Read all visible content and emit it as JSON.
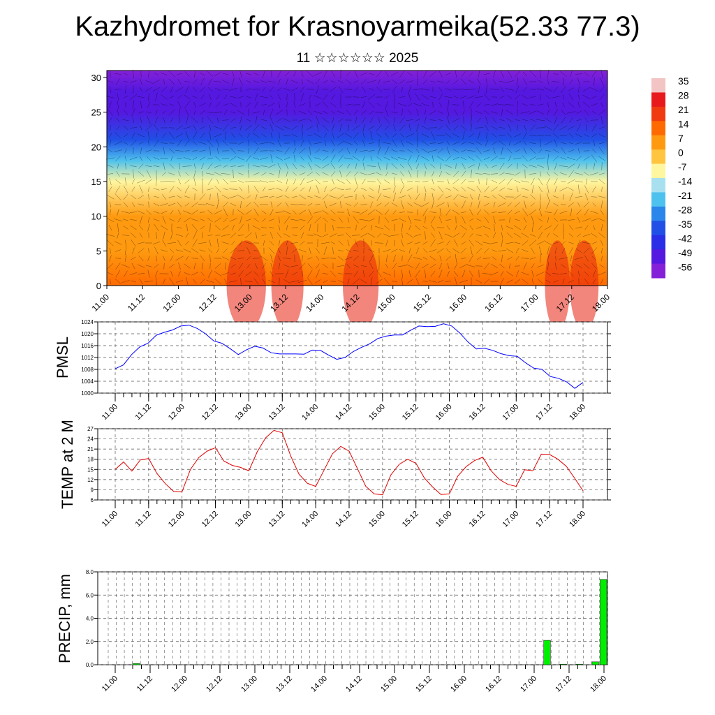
{
  "title": "Kazhydromet for Krasnoyarmeika(52.33 77.3)",
  "subtitle": "11 ☆☆☆☆☆☆ 2025",
  "time_labels": [
    "11.00",
    "11.12",
    "12.00",
    "12.12",
    "13.00",
    "13.12",
    "14.00",
    "14.12",
    "15.00",
    "15.12",
    "16.00",
    "16.12",
    "17.00",
    "17.12",
    "18.00"
  ],
  "colorbar": {
    "labels": [
      "35",
      "28",
      "21",
      "14",
      "7",
      "0",
      "-7",
      "-14",
      "-21",
      "-28",
      "-35",
      "-42",
      "-49",
      "-56"
    ],
    "colors": [
      "#f2c4c4",
      "#e8191c",
      "#f03a10",
      "#ff6a00",
      "#ff9a10",
      "#ffc440",
      "#fff6a0",
      "#a8e0f0",
      "#4ec2ee",
      "#2a86ea",
      "#2050e6",
      "#2a2ee6",
      "#5418e0",
      "#8420d8"
    ]
  },
  "chart_data": [
    {
      "id": "cross_section",
      "type": "heatmap",
      "title": "",
      "xlabel": "",
      "ylabel": "",
      "y_ticks": [
        0,
        5,
        10,
        15,
        20,
        25,
        30
      ],
      "ylim": [
        0,
        31
      ],
      "x": [
        "11.00",
        "11.12",
        "12.00",
        "12.12",
        "13.00",
        "13.12",
        "14.00",
        "14.12",
        "15.00",
        "15.12",
        "16.00",
        "16.12",
        "17.00",
        "17.12",
        "18.00"
      ],
      "temperature_profile": [
        {
          "y": 0,
          "value": 14
        },
        {
          "y": 5,
          "value": 10
        },
        {
          "y": 10,
          "value": 6
        },
        {
          "y": 15,
          "value": -7
        },
        {
          "y": 18,
          "value": -21
        },
        {
          "y": 21,
          "value": -35
        },
        {
          "y": 25,
          "value": -52
        },
        {
          "y": 28,
          "value": -49
        },
        {
          "y": 31,
          "value": -56
        }
      ],
      "colorbar_range": [
        -56,
        35
      ]
    },
    {
      "id": "pmsl",
      "type": "line",
      "title": "",
      "xlabel": "",
      "ylabel": "PMSL",
      "ylim": [
        1000,
        1024
      ],
      "y_ticks": [
        1000,
        1004,
        1008,
        1012,
        1016,
        1020,
        1024
      ],
      "grid": true,
      "color": "#0000ff",
      "values": [
        1008.2,
        1009.5,
        1013.0,
        1015.6,
        1016.8,
        1019.5,
        1020.5,
        1021.3,
        1022.6,
        1022.9,
        1021.8,
        1020.0,
        1017.6,
        1016.8,
        1015.0,
        1013.0,
        1014.6,
        1015.8,
        1015.2,
        1013.6,
        1013.2,
        1013.2,
        1013.2,
        1013.1,
        1014.5,
        1014.4,
        1012.8,
        1011.4,
        1012.0,
        1014.0,
        1015.4,
        1016.6,
        1018.4,
        1019.2,
        1019.6,
        1019.6,
        1021.2,
        1022.6,
        1022.4,
        1022.5,
        1023.4,
        1022.6,
        1020.2,
        1017.2,
        1014.9,
        1015.1,
        1014.4,
        1013.3,
        1012.6,
        1012.4,
        1010.2,
        1008.4,
        1008.0,
        1005.6,
        1005.0,
        1003.8,
        1001.6,
        1003.6
      ]
    },
    {
      "id": "temp2m",
      "type": "line",
      "title": "",
      "xlabel": "",
      "ylabel": "TEMP at 2 M",
      "ylim": [
        6,
        27
      ],
      "y_ticks": [
        6,
        9,
        12,
        15,
        18,
        21,
        24,
        27
      ],
      "grid": true,
      "color": "#e00000",
      "values": [
        15.0,
        17.2,
        14.5,
        17.8,
        18.2,
        13.8,
        10.8,
        8.5,
        8.4,
        15.0,
        18.5,
        20.4,
        21.4,
        17.5,
        16.2,
        15.6,
        14.6,
        20.2,
        24.3,
        26.5,
        25.8,
        19.0,
        13.6,
        10.9,
        10.0,
        14.8,
        19.6,
        21.8,
        20.4,
        15.2,
        10.0,
        7.8,
        7.5,
        13.4,
        16.5,
        18.0,
        16.8,
        12.5,
        9.8,
        7.6,
        7.8,
        13.0,
        15.8,
        17.6,
        18.6,
        14.6,
        12.0,
        10.6,
        10.0,
        14.9,
        14.6,
        19.5,
        19.4,
        18.0,
        15.9,
        12.4,
        8.7
      ]
    },
    {
      "id": "precip",
      "type": "bar",
      "title": "",
      "xlabel": "",
      "ylabel": "PRECIP, mm",
      "ylim": [
        0,
        8
      ],
      "y_ticks": [
        "0.0",
        "2.0",
        "4.0",
        "6.0",
        "8.0"
      ],
      "grid": true,
      "color": "#00ee00",
      "values": [
        0,
        0,
        0,
        0.1,
        0,
        0,
        0,
        0,
        0,
        0,
        0,
        0,
        0,
        0,
        0,
        0,
        0,
        0,
        0,
        0,
        0,
        0,
        0,
        0,
        0,
        0,
        0,
        0,
        0,
        0,
        0,
        0,
        0,
        0,
        0,
        0,
        0,
        0,
        0,
        0,
        0,
        0,
        0,
        0,
        0,
        0,
        0,
        0,
        0,
        0,
        0,
        0,
        0,
        0,
        2.1,
        0,
        0.05,
        0,
        0.05,
        0,
        0.25,
        7.35
      ]
    }
  ]
}
